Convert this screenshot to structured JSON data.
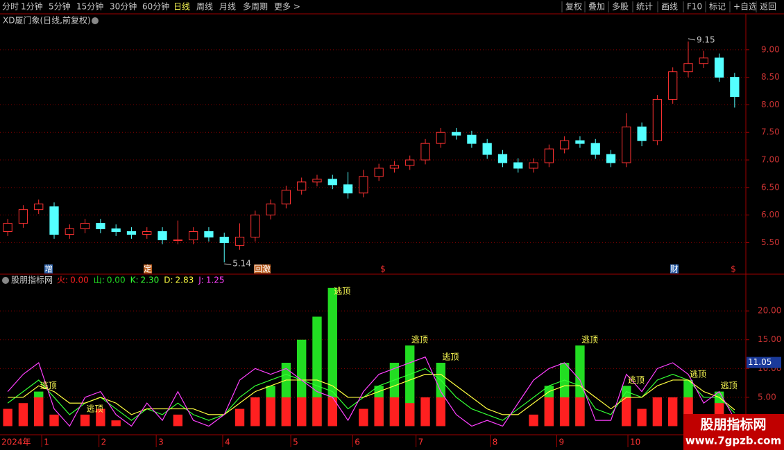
{
  "toolbar": {
    "left": [
      "分时",
      "1分钟",
      "5分钟",
      "15分钟",
      "30分钟",
      "60分钟",
      "日线",
      "周线",
      "月线",
      "多周期",
      "更多 >"
    ],
    "right": [
      "复权",
      "叠加",
      "多股",
      "统计",
      "画线",
      "F10",
      "标记",
      "+自选",
      "返回"
    ]
  },
  "watermark": {
    "title": "股朋指标网",
    "url": "www.7gpzb.com"
  },
  "chart_data": [
    {
      "type": "candlestick",
      "title": "XD厦门象(日线,前复权)",
      "open": [
        5.7,
        5.85,
        6.1,
        6.15,
        5.65,
        5.75,
        5.85,
        5.75,
        5.7,
        5.65,
        5.7,
        5.55,
        5.55,
        5.7,
        5.6,
        5.45,
        5.6,
        6.0,
        6.2,
        6.45,
        6.6,
        6.65,
        6.55,
        6.4,
        6.7,
        6.85,
        6.9,
        7.0,
        7.3,
        7.5,
        7.45,
        7.3,
        7.1,
        6.95,
        6.85,
        6.95,
        7.2,
        7.35,
        7.3,
        7.1,
        6.95,
        7.6,
        7.35,
        8.1,
        8.6,
        8.75,
        8.85,
        8.5
      ],
      "high": [
        5.93,
        6.18,
        6.28,
        6.23,
        5.83,
        5.93,
        5.93,
        5.83,
        5.78,
        5.78,
        5.78,
        5.9,
        5.78,
        5.78,
        5.68,
        5.85,
        6.08,
        6.28,
        6.53,
        6.68,
        6.73,
        6.73,
        6.78,
        6.82,
        6.93,
        6.98,
        7.08,
        7.38,
        7.58,
        7.58,
        7.53,
        7.38,
        7.18,
        7.03,
        7.03,
        7.28,
        7.43,
        7.43,
        7.38,
        7.18,
        7.85,
        7.68,
        8.18,
        8.68,
        9.15,
        8.98,
        8.93,
        8.58
      ],
      "low": [
        5.62,
        5.77,
        6.02,
        5.57,
        5.57,
        5.67,
        5.67,
        5.62,
        5.57,
        5.57,
        5.47,
        5.47,
        5.47,
        5.52,
        5.14,
        5.37,
        5.52,
        5.92,
        6.12,
        6.37,
        6.52,
        6.47,
        6.3,
        6.32,
        6.62,
        6.77,
        6.82,
        6.92,
        7.22,
        7.37,
        7.22,
        7.02,
        6.87,
        6.77,
        6.77,
        6.87,
        7.12,
        7.22,
        7.02,
        6.87,
        6.87,
        7.25,
        7.27,
        8.02,
        8.5,
        8.67,
        8.42,
        7.95
      ],
      "close": [
        5.85,
        6.1,
        6.2,
        5.65,
        5.75,
        5.85,
        5.75,
        5.7,
        5.65,
        5.7,
        5.55,
        5.55,
        5.7,
        5.6,
        5.5,
        5.6,
        6.0,
        6.2,
        6.45,
        6.6,
        6.65,
        6.55,
        6.4,
        6.7,
        6.85,
        6.9,
        7.0,
        7.3,
        7.5,
        7.45,
        7.3,
        7.1,
        6.95,
        6.85,
        6.95,
        7.2,
        7.35,
        7.3,
        7.1,
        6.95,
        7.6,
        7.35,
        8.1,
        8.6,
        8.75,
        8.85,
        8.5,
        8.15
      ],
      "up_color": "#ff3232",
      "down_color": "#54ffff",
      "high_label": 9.15,
      "low_label": 5.14,
      "events": [
        "增",
        "定",
        "回",
        "激",
        "$",
        "财",
        "$"
      ],
      "xlim": [
        -0.5,
        47.5
      ],
      "x_start_label": "2024年",
      "xticks": [
        {
          "value": 2.2,
          "label": "1"
        },
        {
          "value": 5.9,
          "label": "2"
        },
        {
          "value": 9.6,
          "label": "3"
        },
        {
          "value": 13.9,
          "label": "4"
        },
        {
          "value": 18.3,
          "label": "5"
        },
        {
          "value": 22.3,
          "label": "6"
        },
        {
          "value": 26.4,
          "label": "7"
        },
        {
          "value": 31.2,
          "label": "8"
        },
        {
          "value": 35.5,
          "label": "9"
        },
        {
          "value": 40.1,
          "label": "10"
        }
      ],
      "ylim": [
        4.94,
        9.4
      ],
      "yticks": [
        {
          "value": 5.5,
          "label": "5.50"
        },
        {
          "value": 6,
          "label": "6.00"
        },
        {
          "value": 6.5,
          "label": "6.50"
        },
        {
          "value": 7,
          "label": "7.00"
        },
        {
          "value": 7.5,
          "label": "7.50"
        },
        {
          "value": 8,
          "label": "8.00"
        },
        {
          "value": 8.5,
          "label": "8.50"
        },
        {
          "value": 9,
          "label": "9.00"
        }
      ],
      "grid": true
    },
    {
      "type": "bar_line",
      "title": "股朋指标网",
      "series": [
        {
          "name": "火",
          "color": "#ff2020",
          "kind": "bar",
          "current": {
            "value": 0,
            "label": "0.00"
          },
          "values": [
            3,
            4,
            5,
            2,
            0,
            2,
            3,
            1,
            0,
            0,
            0,
            2,
            0,
            0,
            0,
            3,
            5,
            5,
            5,
            5,
            5,
            5,
            0,
            3,
            5,
            5,
            4,
            5,
            5,
            0,
            0,
            0,
            0,
            0,
            2,
            5,
            5,
            5,
            0,
            0,
            5,
            3,
            5,
            5,
            5,
            2,
            4,
            0
          ]
        },
        {
          "name": "山",
          "color": "#22dd22",
          "kind": "bar",
          "current": {
            "value": 0,
            "label": "0.00"
          },
          "values": [
            0,
            0,
            6,
            0,
            0,
            0,
            0,
            0,
            0,
            0,
            0,
            0,
            0,
            0,
            0,
            0,
            0,
            7,
            11,
            15,
            19,
            24,
            0,
            0,
            7,
            11,
            14,
            0,
            11,
            0,
            0,
            0,
            0,
            0,
            0,
            7,
            11,
            14,
            0,
            0,
            7,
            0,
            0,
            0,
            8,
            0,
            6,
            0
          ]
        },
        {
          "name": "K",
          "color": "#33ff33",
          "kind": "line",
          "current": {
            "value": 2.3,
            "label": "2.30"
          },
          "values": [
            4,
            6,
            8,
            5,
            2,
            4,
            5,
            3,
            1,
            3,
            2,
            4,
            2,
            1,
            2,
            5,
            7,
            8,
            9,
            8,
            7,
            6,
            3,
            5,
            7,
            8,
            9,
            10,
            8,
            5,
            3,
            2,
            1,
            3,
            5,
            7,
            8,
            7,
            3,
            2,
            6,
            5,
            8,
            9,
            8,
            5,
            5,
            2.3
          ]
        },
        {
          "name": "D",
          "color": "#ffff40",
          "kind": "line",
          "current": {
            "value": 2.83,
            "label": "2.83"
          },
          "values": [
            5,
            5,
            7,
            6,
            4,
            4,
            5,
            4,
            2,
            3,
            3,
            3,
            3,
            2,
            2,
            4,
            6,
            7,
            8,
            8,
            8,
            7,
            5,
            5,
            6,
            7,
            8,
            9,
            9,
            7,
            5,
            3,
            2,
            2,
            4,
            6,
            7,
            7,
            5,
            3,
            5,
            5,
            7,
            8,
            8,
            6,
            5,
            2.83
          ]
        },
        {
          "name": "J",
          "color": "#ff40ff",
          "kind": "line",
          "current": {
            "value": 1.25,
            "label": "1.25"
          },
          "values": [
            6,
            9,
            11,
            3,
            0,
            5,
            6,
            2,
            0,
            4,
            1,
            6,
            1,
            0,
            2,
            8,
            10,
            9,
            10,
            8,
            6,
            5,
            1,
            6,
            9,
            10,
            11,
            12,
            6,
            2,
            0,
            1,
            0,
            4,
            8,
            10,
            11,
            8,
            1,
            1,
            9,
            6,
            10,
            11,
            9,
            4,
            6,
            1.25
          ]
        }
      ],
      "signals": [
        {
          "x": 2,
          "label": "逃顶"
        },
        {
          "x": 5,
          "label": "逃顶"
        },
        {
          "x": 21,
          "label": "逃顶"
        },
        {
          "x": 26,
          "label": "逃顶"
        },
        {
          "x": 28,
          "label": "逃顶"
        },
        {
          "x": 37,
          "label": "逃顶"
        },
        {
          "x": 40,
          "label": "逃顶"
        },
        {
          "x": 44,
          "label": "逃顶"
        },
        {
          "x": 46,
          "label": "逃顶"
        }
      ],
      "xlim": [
        -0.5,
        47.5
      ],
      "ylim": [
        -1.5,
        24.1
      ],
      "yticks": [
        {
          "value": 5,
          "label": "5.00"
        },
        {
          "value": 10,
          "label": "10.00"
        },
        {
          "value": 15,
          "label": "15.00"
        },
        {
          "value": 20,
          "label": "20.00"
        }
      ],
      "marker": {
        "value": 11.05,
        "label": "11.05"
      },
      "grid": true
    }
  ]
}
